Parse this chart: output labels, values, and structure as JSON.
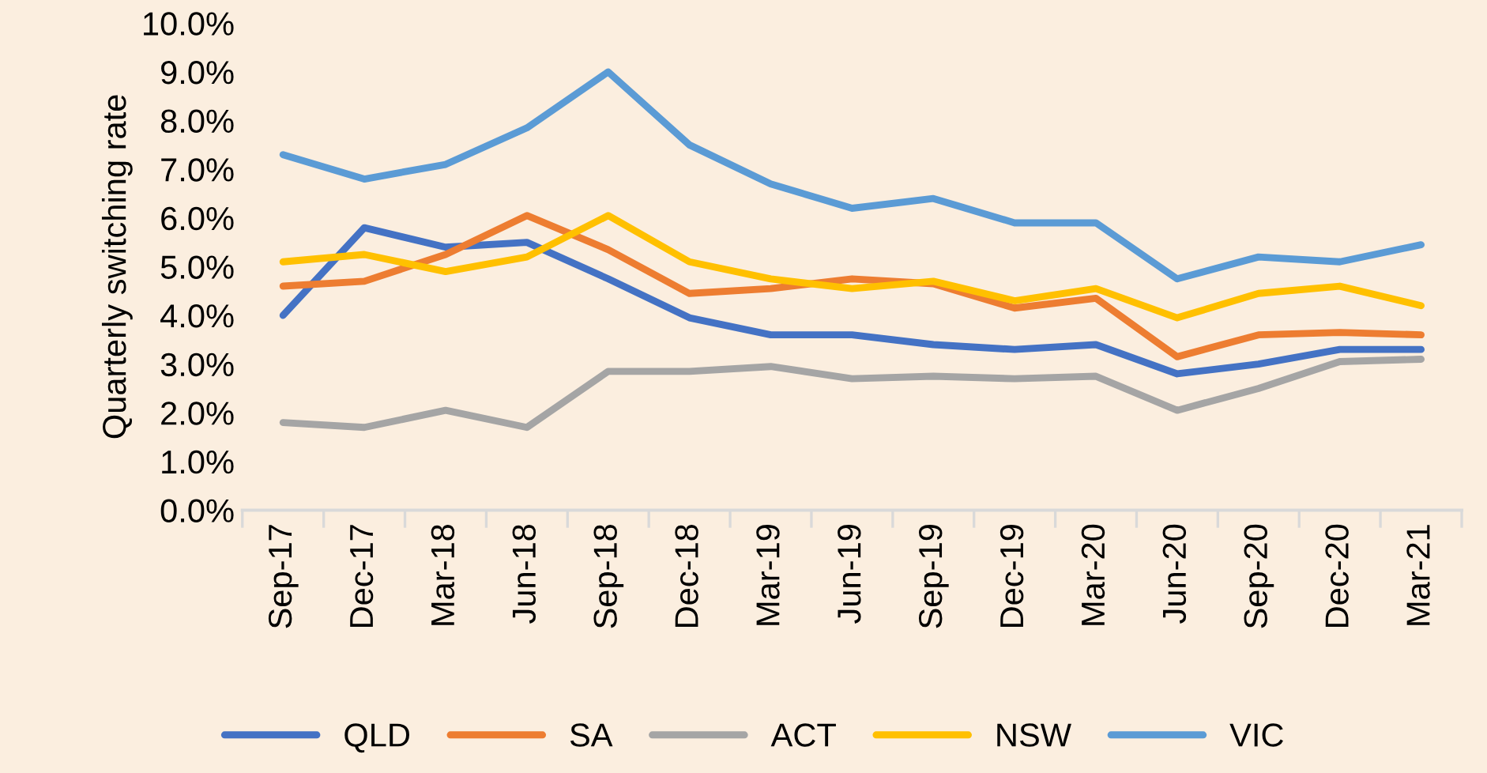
{
  "chart_data": {
    "type": "line",
    "ylabel": "Quarterly switching rate",
    "categories": [
      "Sep-17",
      "Dec-17",
      "Mar-18",
      "Jun-18",
      "Sep-18",
      "Dec-18",
      "Mar-19",
      "Jun-19",
      "Sep-19",
      "Dec-19",
      "Mar-20",
      "Jun-20",
      "Sep-20",
      "Dec-20",
      "Mar-21"
    ],
    "series": [
      {
        "name": "QLD",
        "color": "#4472c4",
        "values": [
          4.0,
          5.8,
          5.4,
          5.5,
          4.75,
          3.95,
          3.6,
          3.6,
          3.4,
          3.3,
          3.4,
          2.8,
          3.0,
          3.3,
          3.3
        ]
      },
      {
        "name": "SA",
        "color": "#ed7d31",
        "values": [
          4.6,
          4.7,
          5.25,
          6.05,
          5.35,
          4.45,
          4.55,
          4.75,
          4.65,
          4.15,
          4.35,
          3.15,
          3.6,
          3.65,
          3.6
        ]
      },
      {
        "name": "ACT",
        "color": "#a5a5a5",
        "values": [
          1.8,
          1.7,
          2.05,
          1.7,
          2.85,
          2.85,
          2.95,
          2.7,
          2.75,
          2.7,
          2.75,
          2.05,
          2.5,
          3.05,
          3.1
        ]
      },
      {
        "name": "NSW",
        "color": "#ffc000",
        "values": [
          5.1,
          5.25,
          4.9,
          5.2,
          6.05,
          5.1,
          4.75,
          4.55,
          4.7,
          4.3,
          4.55,
          3.95,
          4.45,
          4.6,
          4.2
        ]
      },
      {
        "name": "VIC",
        "color": "#5b9bd5",
        "values": [
          7.3,
          6.8,
          7.1,
          7.85,
          9.0,
          7.5,
          6.7,
          6.2,
          6.4,
          5.9,
          5.9,
          4.75,
          5.2,
          5.1,
          5.45
        ]
      }
    ],
    "ylim": [
      0,
      10
    ],
    "yticks": [
      {
        "value": 0,
        "label": "0.0%"
      },
      {
        "value": 1,
        "label": "1.0%"
      },
      {
        "value": 2,
        "label": "2.0%"
      },
      {
        "value": 3,
        "label": "3.0%"
      },
      {
        "value": 4,
        "label": "4.0%"
      },
      {
        "value": 5,
        "label": "5.0%"
      },
      {
        "value": 6,
        "label": "6.0%"
      },
      {
        "value": 7,
        "label": "7.0%"
      },
      {
        "value": 8,
        "label": "8.0%"
      },
      {
        "value": 9,
        "label": "9.0%"
      },
      {
        "value": 10,
        "label": "10.0%"
      }
    ],
    "grid": false,
    "legend": "bottom",
    "marker": "none",
    "line_style": "solid"
  }
}
